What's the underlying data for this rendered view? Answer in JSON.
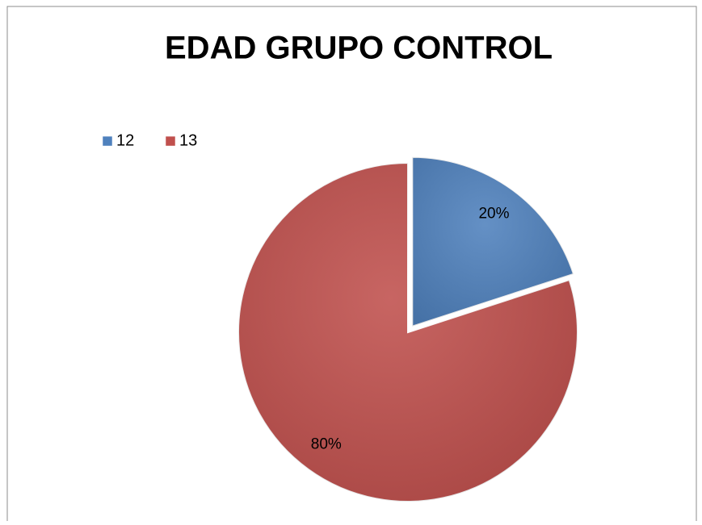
{
  "chart_data": {
    "type": "pie",
    "title": "EDAD GRUPO CONTROL",
    "categories": [
      "12",
      "13"
    ],
    "values": [
      20,
      80
    ],
    "value_labels": [
      "20%",
      "80%"
    ],
    "colors": [
      "#4f81bd",
      "#c0504d"
    ],
    "legend": "top-left",
    "explode": [
      true,
      false
    ]
  }
}
